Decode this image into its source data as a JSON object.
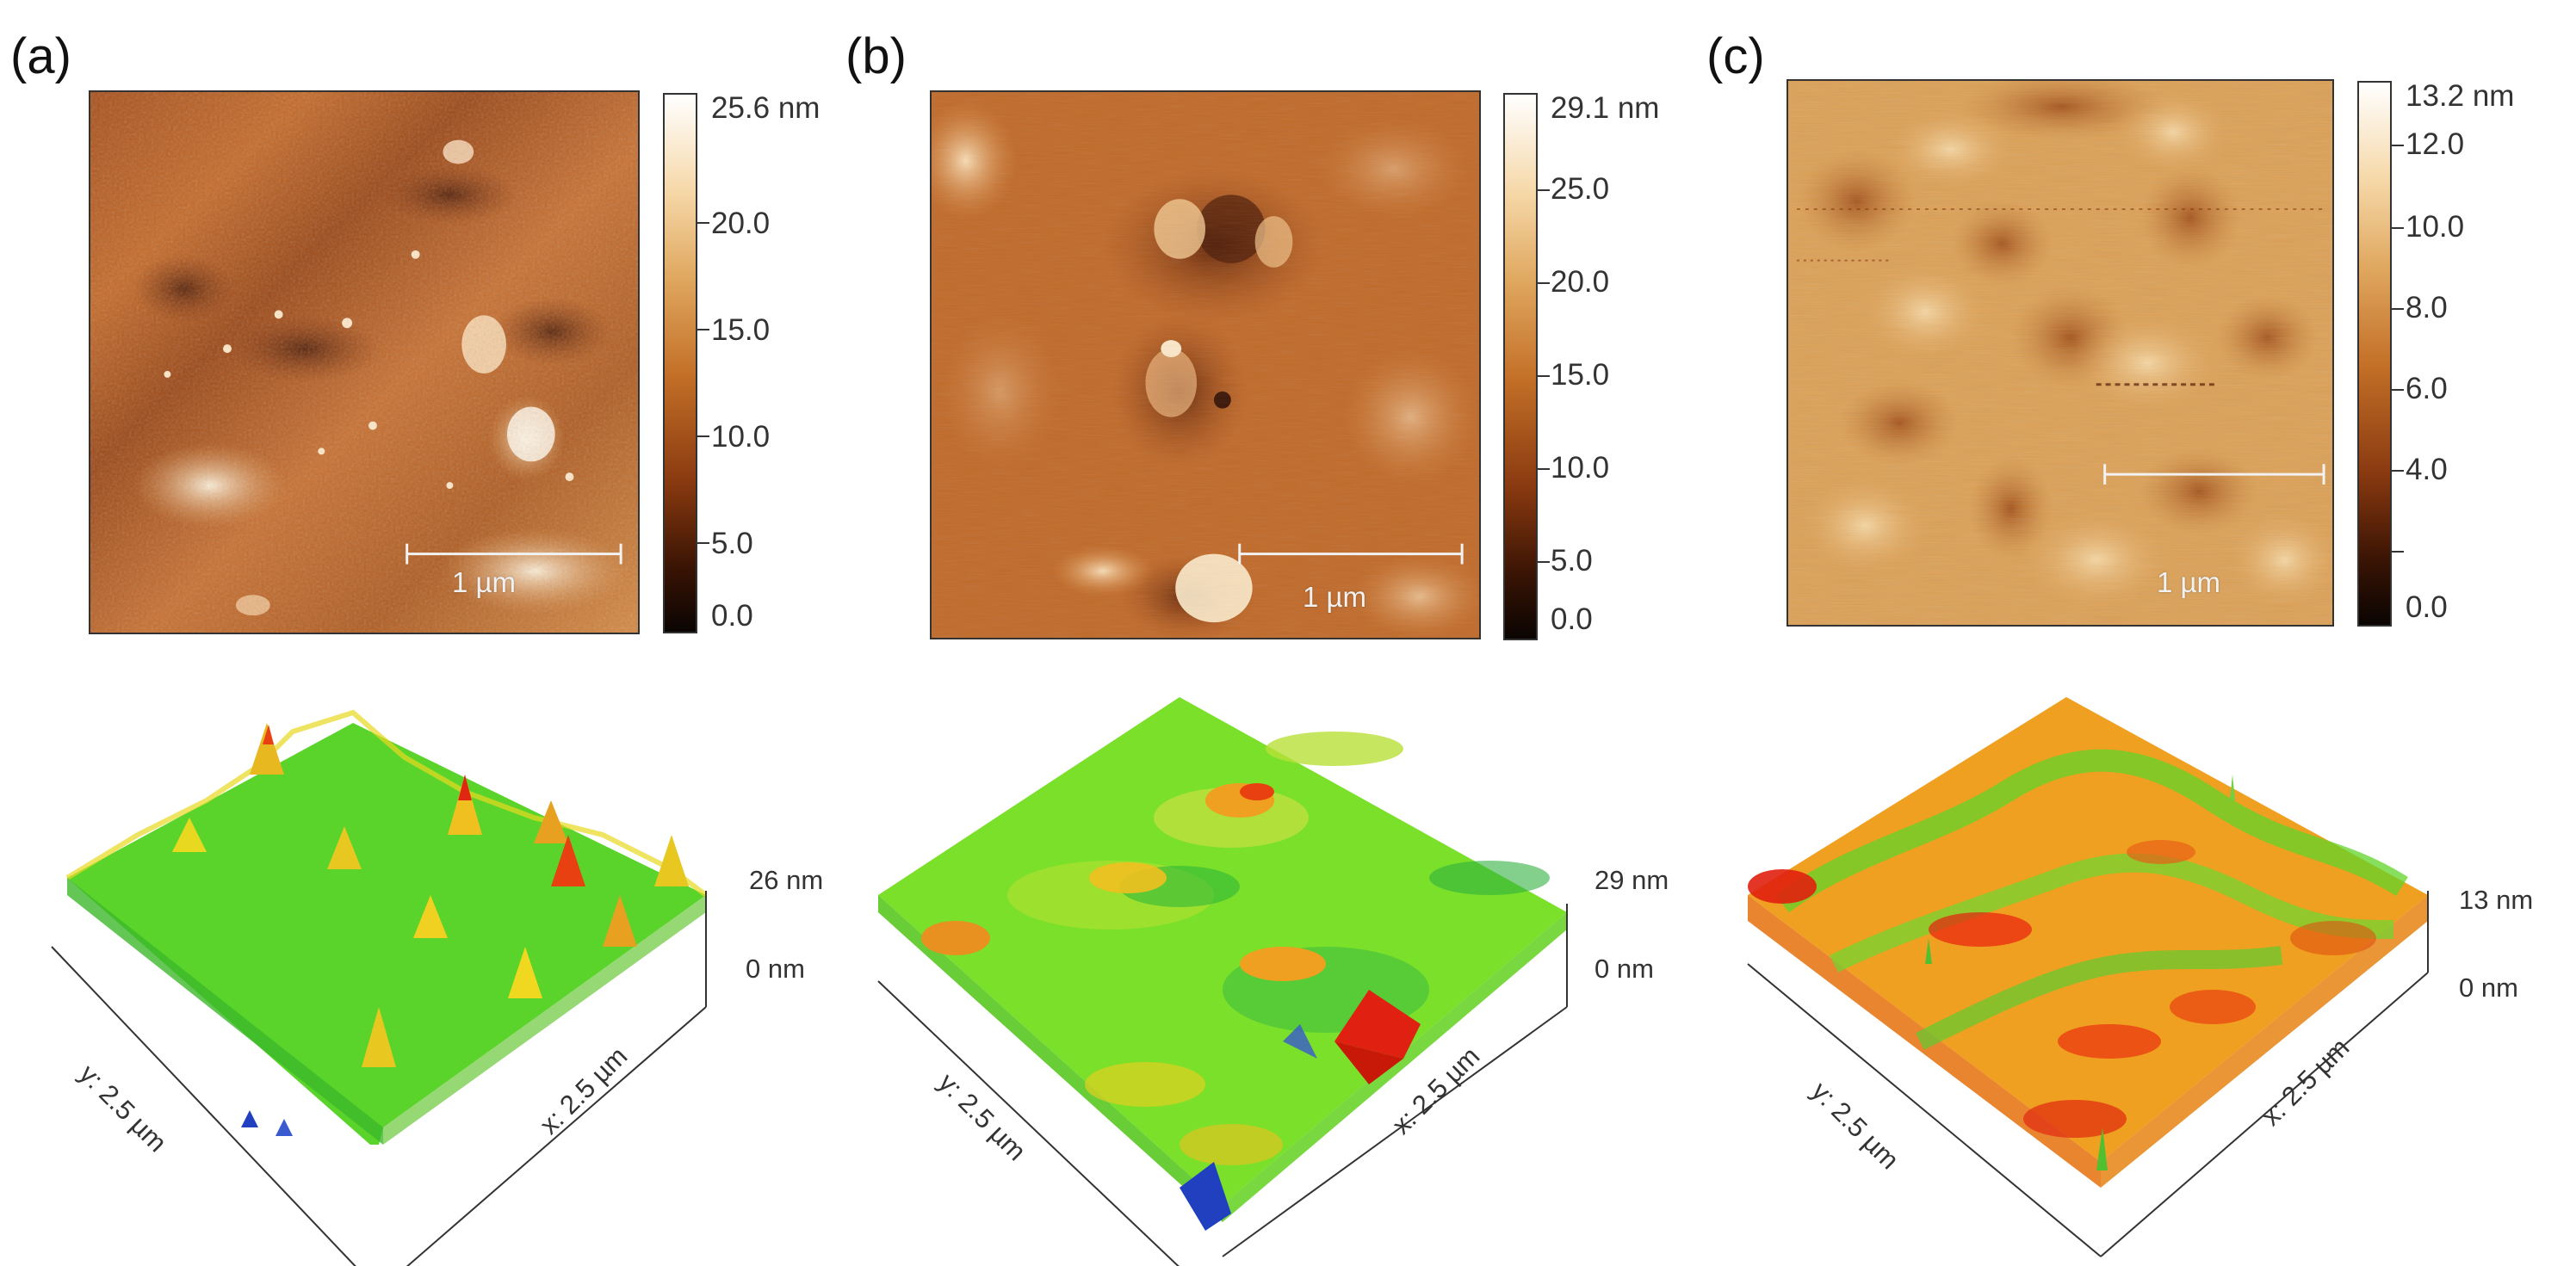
{
  "panels": [
    {
      "label": "(a)",
      "scale_bar": "1 µm",
      "colorbar_max": "25.6 nm",
      "colorbar_ticks": [
        "20.0",
        "15.0",
        "10.0",
        "5.0",
        "0.0"
      ],
      "z_top": "26 nm",
      "z_bottom": "0 nm",
      "y_axis": "y: 2.5 µm",
      "x_axis": "x: 2.5 µm"
    },
    {
      "label": "(b)",
      "scale_bar": "1 µm",
      "colorbar_max": "29.1 nm",
      "colorbar_ticks": [
        "25.0",
        "20.0",
        "15.0",
        "10.0",
        "5.0",
        "0.0"
      ],
      "z_top": "29 nm",
      "z_bottom": "0 nm",
      "y_axis": "y: 2.5 µm",
      "x_axis": "x: 2.5 µm"
    },
    {
      "label": "(c)",
      "scale_bar": "1 µm",
      "colorbar_max": "13.2 nm",
      "colorbar_ticks": [
        "12.0",
        "10.0",
        "8.0",
        "6.0",
        "4.0",
        "0.0"
      ],
      "z_top": "13 nm",
      "z_bottom": "0 nm",
      "y_axis": "y: 2.5 µm",
      "x_axis": "x: 2.5 µm"
    }
  ],
  "colors": {
    "afm_dark": "#1a0a02",
    "afm_mid": "#b85a1c",
    "afm_light": "#ffffff",
    "surf_green": "#44d020",
    "surf_yellow": "#e8e020",
    "surf_red": "#e82010",
    "surf_blue": "#2040c0"
  }
}
